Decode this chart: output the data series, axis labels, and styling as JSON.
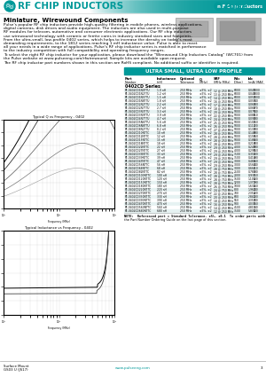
{
  "title_text": "RF CHIP INDUCTORS",
  "subtitle_text": "Miniature, Wirewound Components",
  "header_bar_text": "RF Chip Inductors",
  "body_text_lines": [
    "Pulse's popular RF chip inductors provide high-quality filtering in mobile phones, wireless applications,",
    "digital cameras, disk drives and audio equipment. The inductors are also used in multi-purpose",
    "RF modules for telecom, automotive and consumer electronic applications. Our RF chip inductors",
    "use wirewound technology with ceramic or ferrite cores in industry standard sizes and footprints.",
    "From the ultra-small, low-profile 0402 series, which helps to increase the density on today's most",
    "demanding requirements, to the 1812 series reaching 1 mH inductance value. Pulse is able to meet",
    "all your needs in a wide range of applications. Pulse's RF chip inductor series is matched in performance",
    "to the industry competition with full compatibility and operating frequency ranges."
  ],
  "body_text2_lines": [
    "To select the right RF chip inductor for your application, please download the \"Wirewound Chip Inductors Catalog\" (WC701) from",
    "the Pulse website at www.pulseeng.com/rfwirewound. Sample kits are available upon request."
  ],
  "body_text3": "The RF chip inductor part numbers shown in this section are RoHS compliant. No additional suffix or identifier is required.",
  "teal_bar_text": "ULTRA SMALL, ULTRA LOW PROFILE",
  "series_header": "0402CD Series",
  "table_rows": [
    [
      "PE-0402CD1N0TTU",
      "1.0 nH  250 MHz",
      "±5%, ±2",
      "12 @ 250 MHz",
      "6000",
      "0.045",
      "1000"
    ],
    [
      "PE-0402CD1N2TTU",
      "1.2 nH  250 MHz",
      "±5%, ±2",
      "13 @ 250 MHz",
      "6000",
      "0.048",
      "1000"
    ],
    [
      "PE-0402CD1N5TTU",
      "1.5 nH  250 MHz",
      "±5%, ±2",
      "14 @ 250 MHz",
      "6000",
      "0.050",
      "1000"
    ],
    [
      "PE-0402CD1N8TTU",
      "1.8 nH  250 MHz",
      "±5%, ±2",
      "16 @ 250 MHz",
      "6000",
      "0.055",
      "940"
    ],
    [
      "PE-0402CD2N2TTU",
      "2.2 nH  250 MHz",
      "±5%, ±2",
      "17 @ 250 MHz",
      "5000",
      "0.060",
      "900"
    ],
    [
      "PE-0402CD2N7TTU",
      "2.7 nH  250 MHz",
      "±5%, ±2",
      "18 @ 250 MHz",
      "5000",
      "0.065",
      "870"
    ],
    [
      "PE-0402CD3N3TTU",
      "3.3 nH  250 MHz",
      "±5%, ±2",
      "20 @ 250 MHz",
      "5000",
      "0.075",
      "840"
    ],
    [
      "PE-0402CD3N9TTU",
      "3.9 nH  250 MHz",
      "±5%, ±2",
      "22 @ 250 MHz",
      "5000",
      "0.080",
      "810"
    ],
    [
      "PE-0402CD4N7TTU",
      "4.7 nH  250 MHz",
      "±5%, ±2",
      "24 @ 250 MHz",
      "5000",
      "0.090",
      "780"
    ],
    [
      "PE-0402CD5N6TTU",
      "5.6 nH  250 MHz",
      "±5%, ±2",
      "25 @ 250 MHz",
      "5000",
      "0.100",
      "750"
    ],
    [
      "PE-0402CD6N8TTU",
      "6.8 nH  250 MHz",
      "±5%, ±2",
      "26 @ 250 MHz",
      "5000",
      "0.110",
      "720"
    ],
    [
      "PE-0402CD8N2TTU",
      "8.2 nH  250 MHz",
      "±5%, ±2",
      "27 @ 250 MHz",
      "5000",
      "0.130",
      "700"
    ],
    [
      "PE-0402CD10NTTC",
      "10 nH  250 MHz",
      "±5%, ±2",
      "28 @ 250 MHz",
      "5000",
      "0.140",
      "680"
    ],
    [
      "PE-0402CD12NTTC",
      "12 nH  250 MHz",
      "±5%, ±2",
      "28 @ 250 MHz",
      "5000",
      "0.155",
      "660"
    ],
    [
      "PE-0402CD15NTTC",
      "15 nH  250 MHz",
      "±5%, ±2",
      "28 @ 250 MHz",
      "5000",
      "0.180",
      "630"
    ],
    [
      "PE-0402CD18NTTC",
      "18 nH  250 MHz",
      "±5%, ±2",
      "28 @ 250 MHz",
      "4000",
      "0.210",
      "600"
    ],
    [
      "PE-0402CD22NTTC",
      "22 nH  250 MHz",
      "±5%, ±2",
      "29 @ 250 MHz",
      "4000",
      "0.240",
      "580"
    ],
    [
      "PE-0402CD27NTTC",
      "27 nH  250 MHz",
      "±5%, ±2",
      "29 @ 250 MHz",
      "4000",
      "0.290",
      "550"
    ],
    [
      "PE-0402CD33NTTC",
      "33 nH  250 MHz",
      "±5%, ±2",
      "29 @ 250 MHz",
      "3500",
      "0.350",
      "520"
    ],
    [
      "PE-0402CD39NTTC",
      "39 nH  250 MHz",
      "±5%, ±2",
      "29 @ 250 MHz",
      "3500",
      "0.410",
      "490"
    ],
    [
      "PE-0402CD47NTTC",
      "47 nH  250 MHz",
      "±5%, ±2",
      "29 @ 250 MHz",
      "3000",
      "0.480",
      "460"
    ],
    [
      "PE-0402CD56NTTC",
      "56 nH  250 MHz",
      "±5%, ±2",
      "29 @ 250 MHz",
      "3000",
      "0.560",
      "440"
    ],
    [
      "PE-0402CD68NTTC",
      "68 nH  250 MHz",
      "±5%, ±2",
      "28 @ 750 MHz",
      "3000",
      "0.660",
      "410"
    ],
    [
      "PE-0402CD82NTTC",
      "82 nH  250 MHz",
      "±5%, ±2",
      "28 @ 750 MHz",
      "2500",
      "0.780",
      "380"
    ],
    [
      "PE-0402CD100NTTC",
      "100 nH  250 MHz",
      "±5%, ±2",
      "28 @ 750 MHz",
      "2000",
      "0.930",
      "350"
    ],
    [
      "PE-0402CD120NTTC",
      "120 nH  250 MHz",
      "±5%, ±2",
      "28 @ 750 MHz",
      "1500",
      "1.100",
      "320"
    ],
    [
      "PE-0402CD150NTTC",
      "150 nH  250 MHz",
      "±5%, ±2",
      "28 @ 750 MHz",
      "1200",
      "1.370",
      "290"
    ],
    [
      "PE-0402CD180NTTC",
      "180 nH  250 MHz",
      "±5%, ±2",
      "26 @ 750 MHz",
      "1000",
      "1.630",
      "260"
    ],
    [
      "PE-0402CD220NTTC",
      "220 nH  250 MHz",
      "±5%, ±2",
      "24 @ 750 MHz",
      "800",
      "1.960",
      "240"
    ],
    [
      "PE-0402CD270NTTC",
      "270 nH  250 MHz",
      "±5%, ±2",
      "22 @ 250 MHz",
      "700",
      "2.350",
      "220"
    ],
    [
      "PE-0402CD330NTTC",
      "330 nH  250 MHz",
      "±5%, ±2",
      "20 @ 250 MHz",
      "600",
      "2.840",
      "200"
    ],
    [
      "PE-0402CD390NTTC",
      "390 nH  250 MHz",
      "±5%, ±2",
      "18 @ 250 MHz",
      "550",
      "3.350",
      "180"
    ],
    [
      "PE-0402CD470NTTC",
      "470 nH  250 MHz",
      "±5%, ±2",
      "16 @ 250 MHz",
      "500",
      "4.030",
      "160"
    ],
    [
      "PE-0402CD560NTTC",
      "560 nH  250 MHz",
      "±5%, ±2",
      "14 @ 250 MHz",
      "4500",
      "4.810",
      "140"
    ],
    [
      "PE-0402CD680NTTC",
      "680 nH  250 MHz",
      "±5%, ±2",
      "12 @ 250 MHz",
      "3500",
      "5.830",
      "120"
    ]
  ],
  "note_text1": "NOTE:  Referenced part = Standard Tolerance. ±5%, ±0.1  To order parts with optional tolerances, use",
  "note_text2": "the Part Number Ordering Guide on the last page of this section.",
  "footer_text1": "Surface Mount",
  "footer_text2": "GS03 U (JS17)",
  "footer_url": "www.pulseeng.com",
  "footer_page": "3",
  "graph1_title": "Typical Q vs Frequency - 0402",
  "graph2_title": "Typical Inductance vs Frequency - 0402",
  "bg_color": "#ffffff",
  "teal_color": "#009999",
  "alt_row": "#e6f2f2",
  "table_line": "#cccccc"
}
